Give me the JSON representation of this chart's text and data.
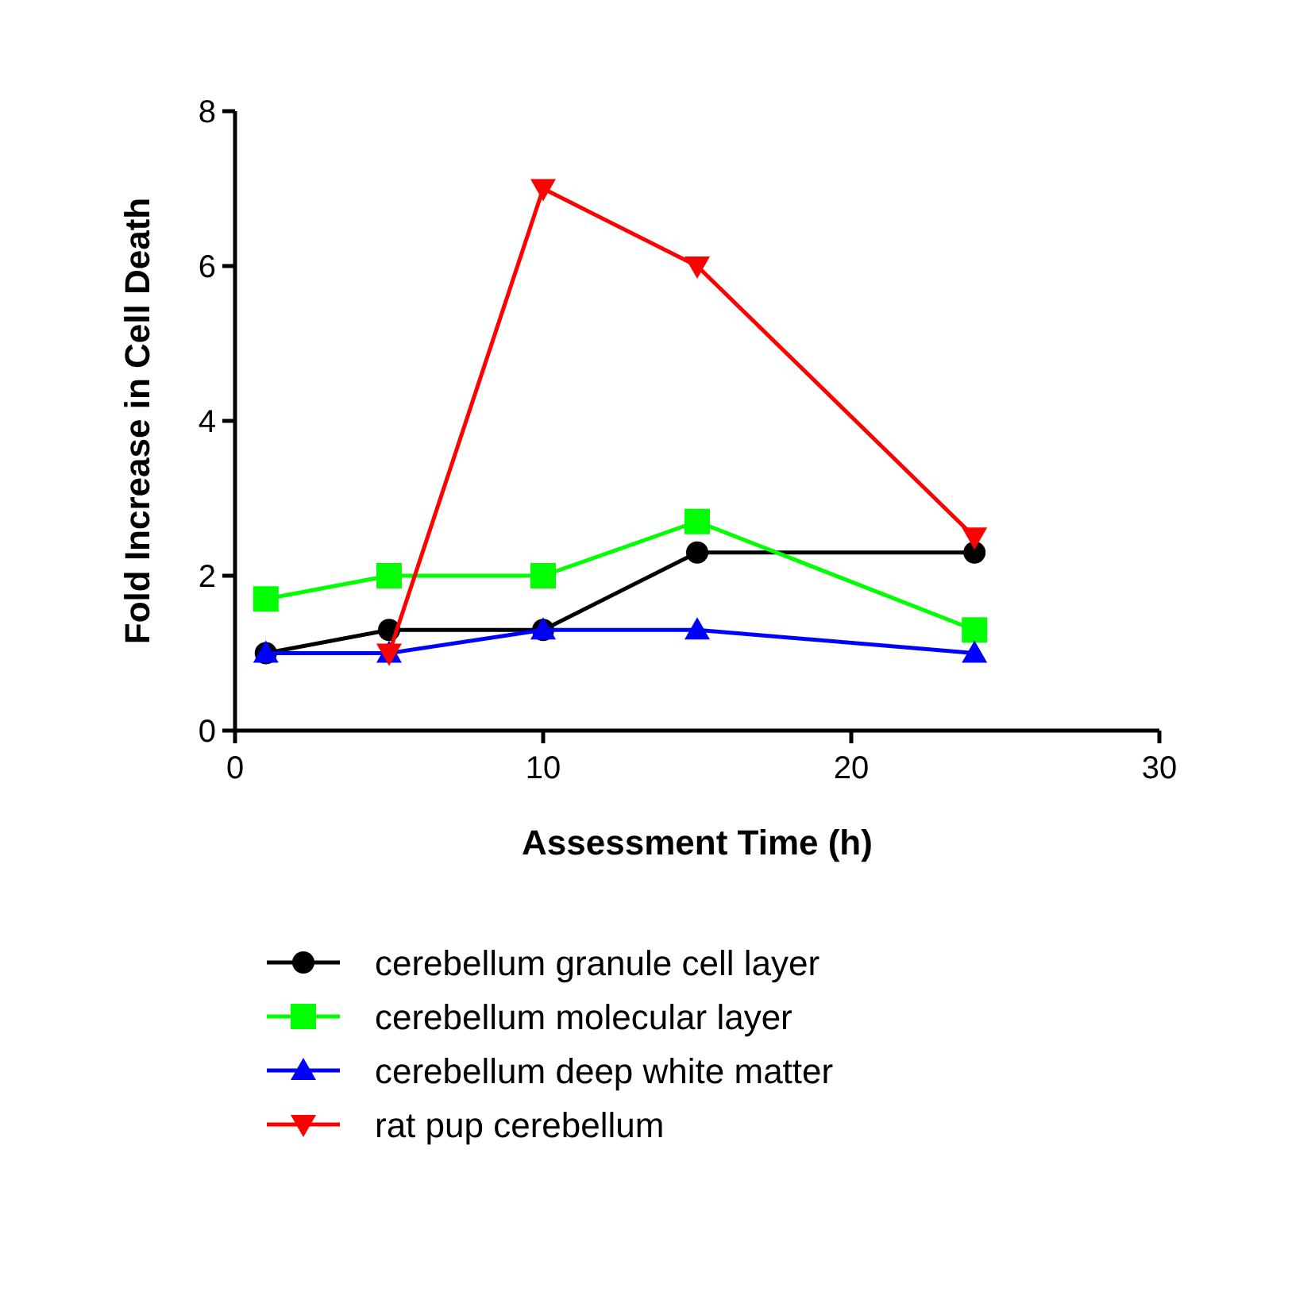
{
  "chart_data": {
    "type": "line",
    "xlabel": "Assessment Time (h)",
    "ylabel": "Fold Increase in Cell Death",
    "xlim": [
      0,
      30
    ],
    "xticks": [
      0,
      10,
      20,
      30
    ],
    "ylim": [
      0,
      8
    ],
    "yticks": [
      0,
      2,
      4,
      6,
      8
    ],
    "grid": false,
    "legend": "bottom",
    "series": [
      {
        "name": "cerebellum granule cell layer",
        "color": "#000000",
        "marker": "circle",
        "x": [
          1,
          5,
          10,
          15,
          24
        ],
        "values": [
          1.0,
          1.3,
          1.3,
          2.3,
          2.3
        ]
      },
      {
        "name": "cerebellum molecular layer",
        "color": "#00ff00",
        "marker": "square",
        "x": [
          1,
          5,
          10,
          15,
          24
        ],
        "values": [
          1.7,
          2.0,
          2.0,
          2.7,
          1.3
        ]
      },
      {
        "name": "cerebellum deep white matter",
        "color": "#0000ff",
        "marker": "triangle",
        "x": [
          1,
          5,
          10,
          15,
          24
        ],
        "values": [
          1.0,
          1.0,
          1.3,
          1.3,
          1.0
        ]
      },
      {
        "name": "rat pup cerebellum",
        "color": "#ff0000",
        "marker": "triangle-down",
        "x": [
          5,
          10,
          15,
          24
        ],
        "values": [
          1.0,
          7.0,
          6.0,
          2.5
        ]
      }
    ]
  }
}
